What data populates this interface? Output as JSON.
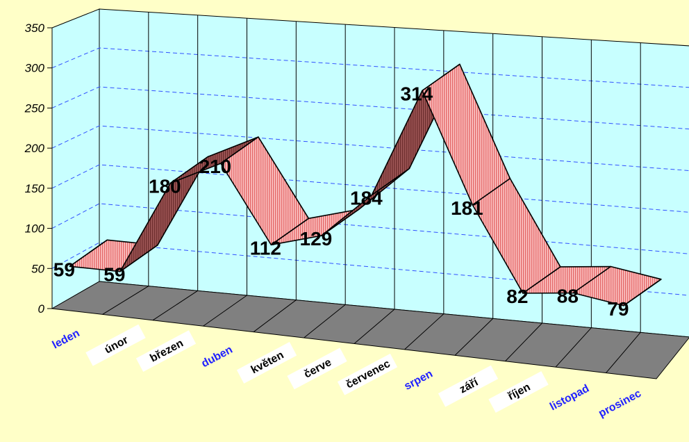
{
  "chart_data": {
    "type": "line",
    "style": "3d-ribbon",
    "categories": [
      "leden",
      "únor",
      "březen",
      "duben",
      "květen",
      "červen",
      "červenec",
      "srpen",
      "září",
      "říjen",
      "listopad",
      "prosinec"
    ],
    "category_label_text": [
      "leden",
      "únor",
      "březen",
      "duben",
      "květen",
      "červe",
      "červenec",
      "srpen",
      "září",
      "říjen",
      "listopad",
      "prosinec"
    ],
    "category_label_blue": [
      true,
      false,
      false,
      true,
      false,
      false,
      false,
      true,
      false,
      false,
      true,
      true
    ],
    "category_label_boxed": [
      false,
      true,
      true,
      false,
      true,
      true,
      true,
      false,
      true,
      true,
      false,
      false
    ],
    "values": [
      59,
      59,
      180,
      210,
      112,
      129,
      184,
      314,
      181,
      82,
      88,
      79
    ],
    "yticks": [
      "0",
      "50",
      "100",
      "150",
      "200",
      "250",
      "300",
      "350"
    ],
    "ylim": [
      0,
      350
    ],
    "grid": true,
    "colors": {
      "background": "#FFFFC8",
      "wall": "#C8FFFF",
      "floor": "#808080",
      "ribbon_top": "#F8A6A6",
      "ribbon_side": "#8A4545",
      "gridline": "#3050FF",
      "label_blue": "#2020FF",
      "label_black": "#000000",
      "label_box": "#FFFFFF"
    }
  }
}
